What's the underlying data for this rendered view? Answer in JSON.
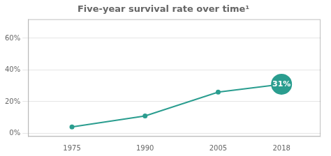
{
  "chart_data": {
    "type": "line",
    "title": "Five-year survival rate over time¹",
    "x": [
      1975,
      1990,
      2005,
      2018
    ],
    "values": [
      0.04,
      0.11,
      0.26,
      0.31
    ],
    "color": "#2a9d8f",
    "xlim": [
      1966,
      2026
    ],
    "ylim": [
      -0.02,
      0.72
    ],
    "xticks": [
      1975,
      1990,
      2005,
      2018
    ],
    "yticks": [
      {
        "value": 0.0,
        "label": "0%"
      },
      {
        "value": 0.2,
        "label": "20%"
      },
      {
        "value": 0.4,
        "label": "40%"
      },
      {
        "value": 0.6,
        "label": "60%"
      }
    ],
    "grid": "y",
    "annotations": [
      {
        "x": 2018,
        "y": 0.31,
        "text": "31%"
      }
    ]
  }
}
